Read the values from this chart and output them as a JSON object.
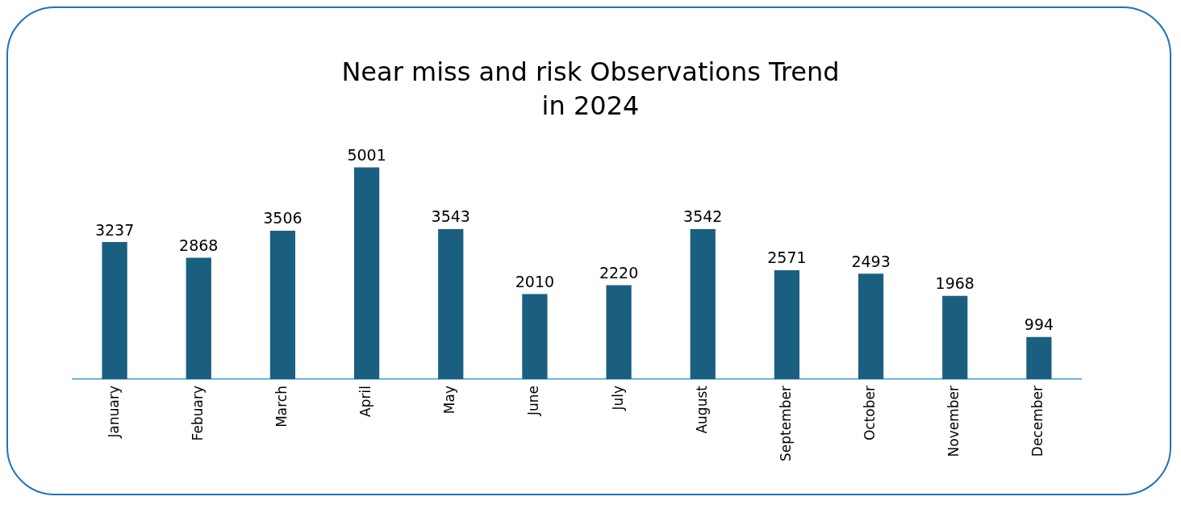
{
  "chart_data": {
    "type": "bar",
    "title": "Near miss and risk Observations Trend in 2024",
    "categories": [
      "January",
      "Febuary",
      "March",
      "April",
      "May",
      "June",
      "July",
      "August",
      "September",
      "October",
      "November",
      "December"
    ],
    "values": [
      3237,
      2868,
      3506,
      5001,
      3543,
      2010,
      2220,
      3542,
      2571,
      2493,
      1968,
      994
    ],
    "color": "#1b5f80",
    "data_labels": true,
    "grid": false,
    "legend": false
  }
}
